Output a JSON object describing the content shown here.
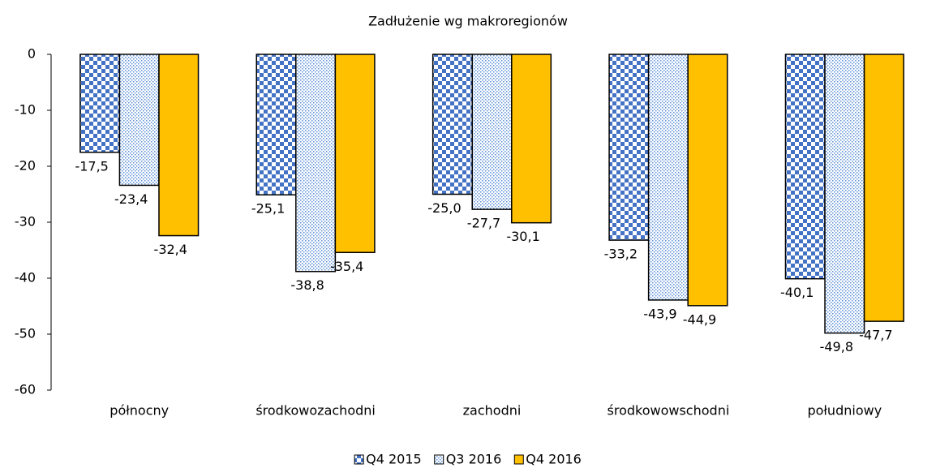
{
  "chart_data": {
    "type": "bar",
    "title": "Zadłużenie wg makroregionów",
    "categories": [
      "północny",
      "środkowozachodni",
      "zachodni",
      "środkowowschodni",
      "południowy"
    ],
    "series": [
      {
        "name": "Q4 2015",
        "color": "#4472c4",
        "pattern": "checker",
        "values": [
          -17.5,
          -25.1,
          -25.0,
          -33.2,
          -40.1
        ],
        "value_labels": [
          "-17,5",
          "-25,1",
          "-25,0",
          "-33,2",
          "-40,1"
        ]
      },
      {
        "name": "Q3 2016",
        "color": "#5b8fd6",
        "pattern": "dots",
        "values": [
          -23.4,
          -38.8,
          -27.7,
          -43.9,
          -49.8
        ],
        "value_labels": [
          "-23,4",
          "-38,8",
          "-27,7",
          "-43,9",
          "-49,8"
        ]
      },
      {
        "name": "Q4 2016",
        "color": "#ffc000",
        "pattern": "solid",
        "values": [
          -32.4,
          -35.4,
          -30.1,
          -44.9,
          -47.7
        ],
        "value_labels": [
          "-32,4",
          "-35,4",
          "-30,1",
          "-44,9",
          "-47,7"
        ]
      }
    ],
    "ylim": [
      -60,
      0
    ],
    "yticks": [
      0,
      -10,
      -20,
      -30,
      -40,
      -50,
      -60
    ],
    "grid": false,
    "legend": "bottom"
  }
}
